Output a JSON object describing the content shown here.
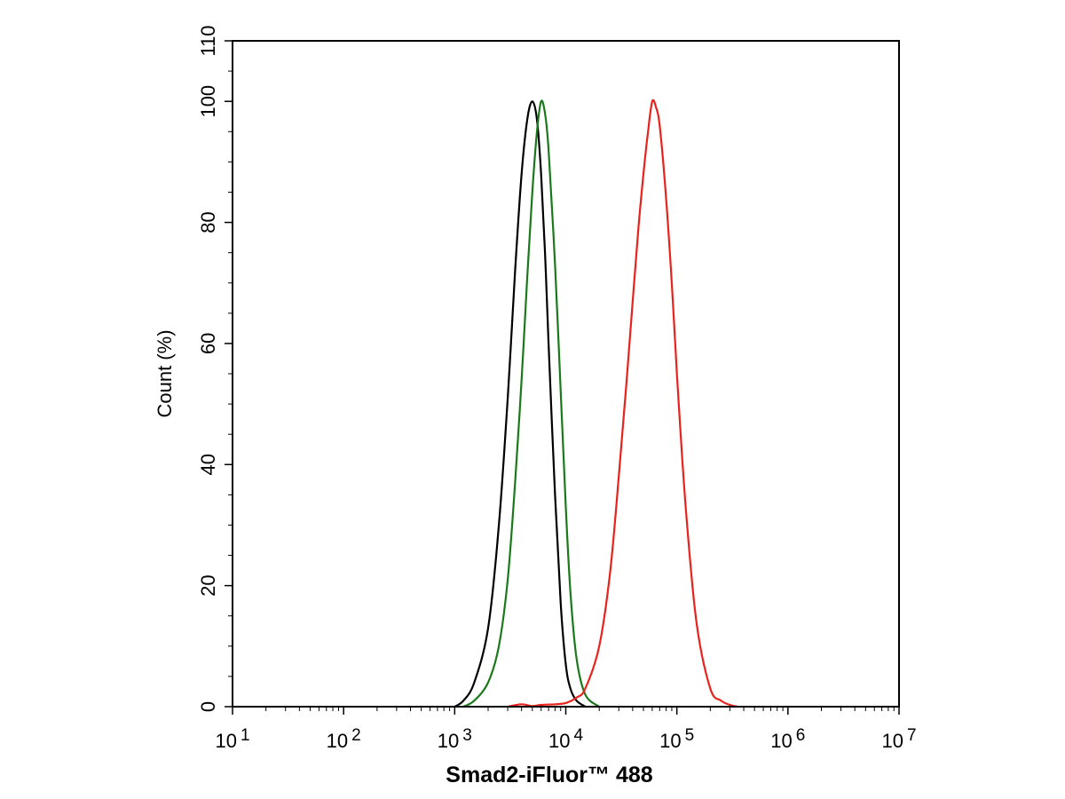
{
  "chart_data": {
    "type": "line",
    "xlabel": "Smad2-iFluor™ 488",
    "ylabel": "Count  (%)",
    "x_scale": "log",
    "xlim": [
      10,
      10000000
    ],
    "ylim": [
      0,
      110
    ],
    "x_ticks": [
      {
        "value": 10,
        "base": "10",
        "exp": "1"
      },
      {
        "value": 100,
        "base": "10",
        "exp": "2"
      },
      {
        "value": 1000,
        "base": "10",
        "exp": "3"
      },
      {
        "value": 10000,
        "base": "10",
        "exp": "4"
      },
      {
        "value": 100000,
        "base": "10",
        "exp": "5"
      },
      {
        "value": 1000000,
        "base": "10",
        "exp": "6"
      },
      {
        "value": 10000000,
        "base": "10",
        "exp": "7"
      }
    ],
    "y_ticks": [
      "0",
      "20",
      "40",
      "60",
      "80",
      "100",
      "110"
    ],
    "grid": false,
    "legend": "none",
    "series": [
      {
        "color": "#000000",
        "x": [
          1000,
          1200,
          1500,
          2000,
          2500,
          3000,
          3500,
          4000,
          4500,
          5000,
          5500,
          6000,
          6500,
          7000,
          8000,
          9000,
          10000,
          11000,
          12500,
          15000
        ],
        "y": [
          0,
          1,
          4,
          13,
          30,
          51,
          72,
          88,
          97,
          100,
          97,
          88,
          75,
          60,
          35,
          17,
          7,
          3,
          1,
          0
        ]
      },
      {
        "color": "#1a7a1a",
        "x": [
          1200,
          1500,
          2000,
          2500,
          3000,
          3500,
          4000,
          4500,
          5000,
          5500,
          6000,
          6500,
          7000,
          8000,
          9000,
          10000,
          11000,
          12500,
          15000,
          20000
        ],
        "y": [
          0,
          1,
          4,
          10,
          21,
          37,
          54,
          71,
          85,
          95,
          100,
          98,
          92,
          73,
          52,
          33,
          19,
          8,
          2,
          0
        ]
      },
      {
        "color": "#e8221c",
        "x": [
          3000,
          4000,
          5000,
          6000,
          8000,
          10000,
          12500,
          15000,
          20000,
          25000,
          30000,
          35000,
          40000,
          45000,
          50000,
          55000,
          60000,
          65000,
          70000,
          80000,
          90000,
          100000,
          120000,
          150000,
          200000,
          250000,
          300000,
          350000
        ],
        "y": [
          0,
          0.4,
          0.1,
          0.3,
          0.4,
          0.6,
          1.5,
          3,
          10,
          22,
          38,
          53,
          67,
          79,
          88,
          95,
          100,
          99,
          96,
          84,
          70,
          55,
          33,
          14,
          3,
          1,
          0.3,
          0
        ]
      }
    ]
  }
}
